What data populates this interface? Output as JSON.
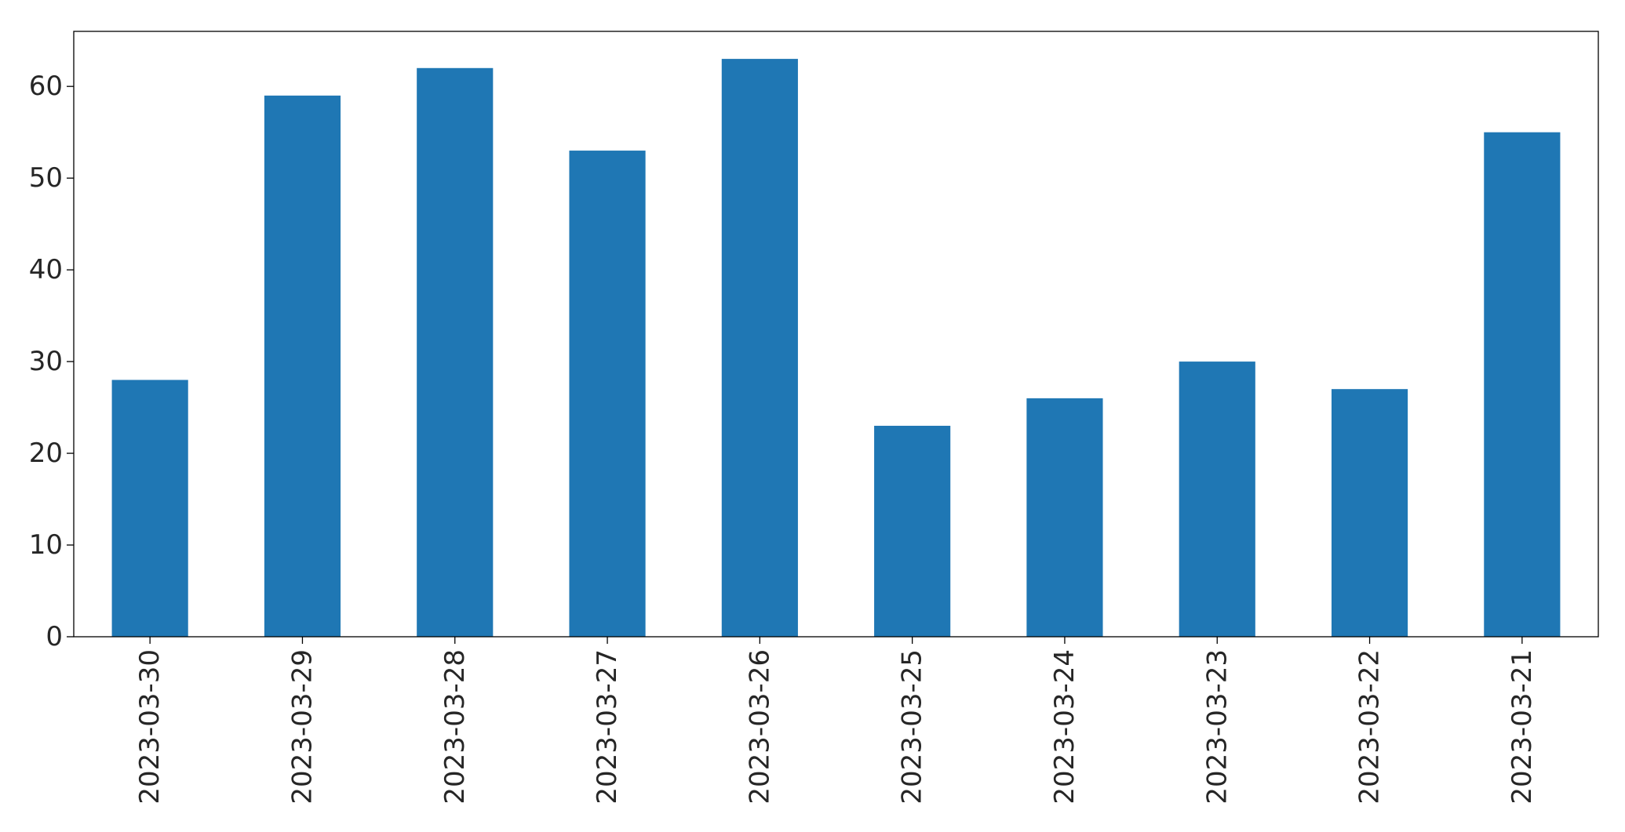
{
  "chart_data": {
    "type": "bar",
    "title": "",
    "xlabel": "",
    "ylabel": "",
    "categories": [
      "2023-03-30",
      "2023-03-29",
      "2023-03-28",
      "2023-03-27",
      "2023-03-26",
      "2023-03-25",
      "2023-03-24",
      "2023-03-23",
      "2023-03-22",
      "2023-03-21"
    ],
    "values": [
      28,
      59,
      62,
      53,
      63,
      23,
      26,
      30,
      27,
      55
    ],
    "ylim": [
      0,
      66
    ],
    "yticks": [
      0,
      10,
      20,
      30,
      40,
      50,
      60
    ],
    "grid": false,
    "legend": "none",
    "bar_color": "#1f77b4"
  }
}
